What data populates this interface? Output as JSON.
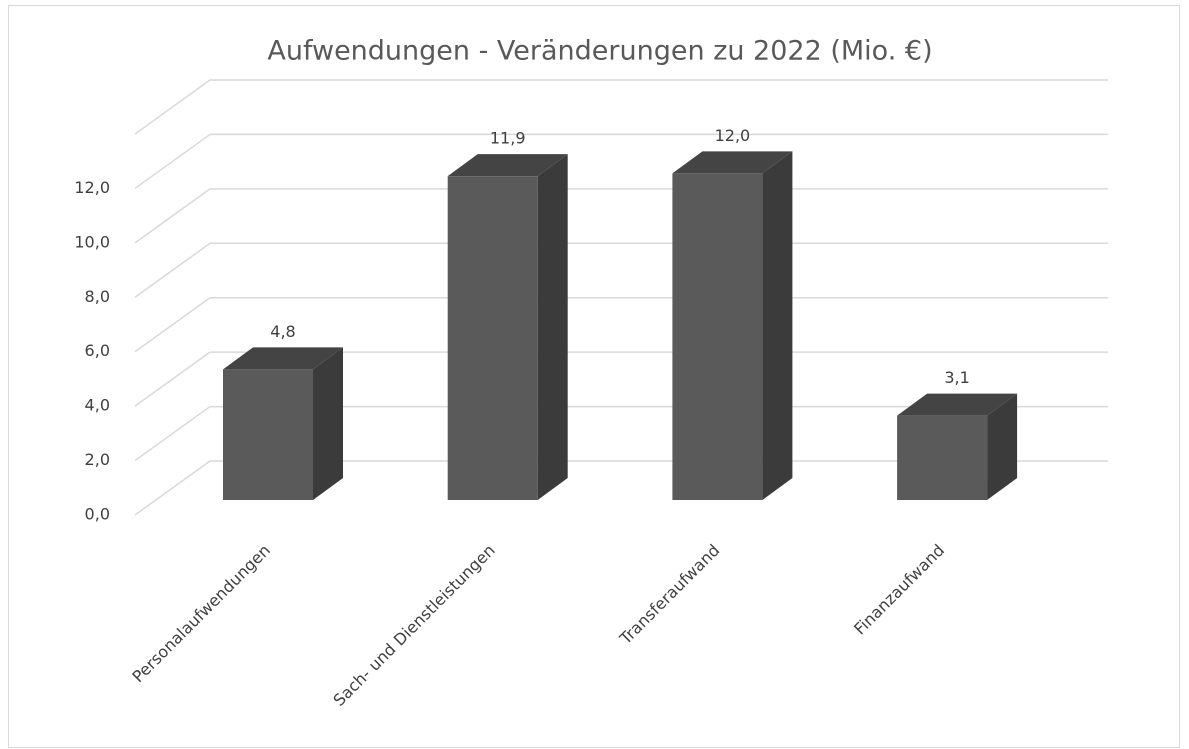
{
  "chart_data": {
    "type": "bar3d",
    "title": "Aufwendungen - Veränderungen zu 2022 (Mio. €)",
    "categories": [
      "Personalaufwendungen",
      "Sach- und Dienstleistungen",
      "Transferaufwand",
      "Finanzaufwand"
    ],
    "values": [
      4.8,
      11.9,
      12.0,
      3.1
    ],
    "value_labels": [
      "4,8",
      "11,9",
      "12,0",
      "3,1"
    ],
    "color": "#5a5a5a",
    "ylim": [
      0,
      14
    ],
    "yticks": [
      {
        "value": 0,
        "label": "0,0"
      },
      {
        "value": 2,
        "label": "2,0"
      },
      {
        "value": 4,
        "label": "4,0"
      },
      {
        "value": 6,
        "label": "6,0"
      },
      {
        "value": 8,
        "label": "8,0"
      },
      {
        "value": 10,
        "label": "10,0"
      },
      {
        "value": 12,
        "label": "12,0"
      }
    ],
    "grid": true
  }
}
